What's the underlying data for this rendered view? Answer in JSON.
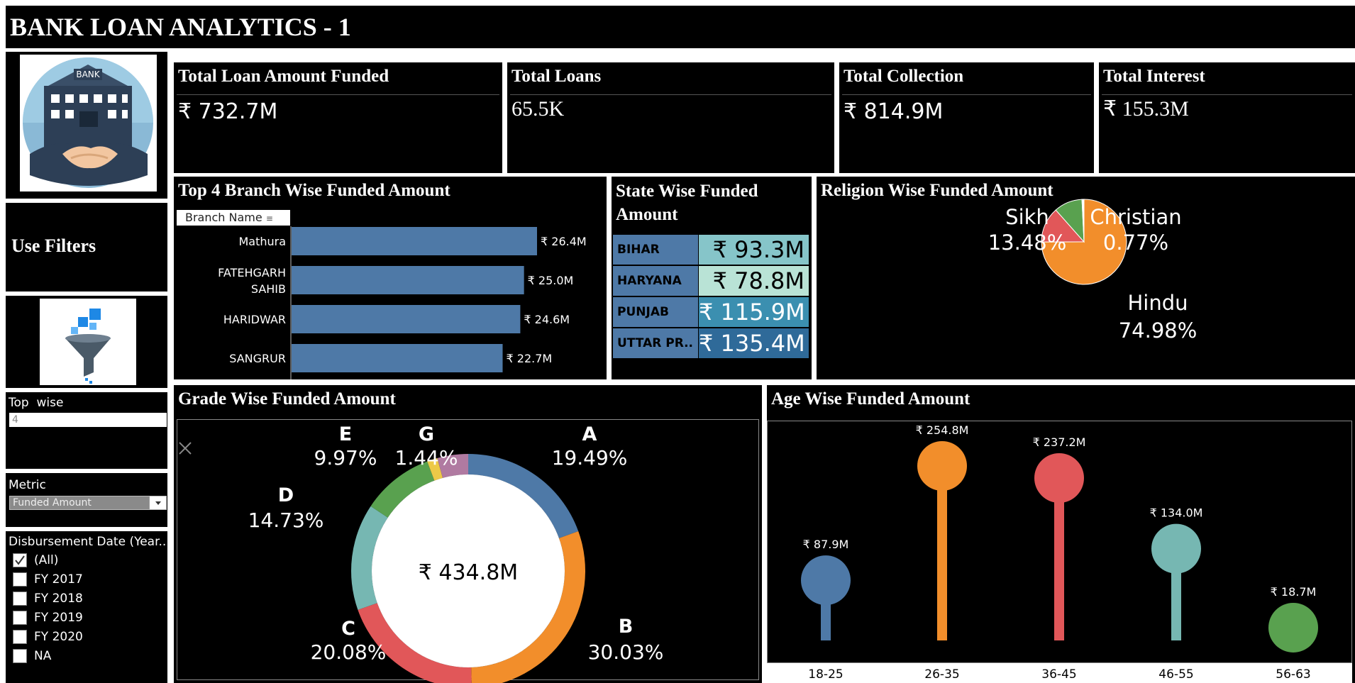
{
  "header": {
    "title": "BANK LOAN ANALYTICS - 1"
  },
  "logo": {
    "sign_text": "BANK"
  },
  "kpis": [
    {
      "label": "Total Loan Amount Funded",
      "value": "₹ 732.7M"
    },
    {
      "label": "Total Loans",
      "value": "65.5K"
    },
    {
      "label": "Total Collection",
      "value": "₹ 814.9M"
    },
    {
      "label": "Total Interest",
      "value": "₹ 155.3M"
    }
  ],
  "sidebar": {
    "use_filters_label": "Use Filters",
    "top_wise": {
      "label": "Top  wise",
      "value": "4"
    },
    "metric": {
      "label": "Metric",
      "selected": "Funded Amount"
    },
    "date_filter": {
      "label": "Disbursement Date (Year..",
      "options": [
        {
          "label": "(All)",
          "checked": true
        },
        {
          "label": "FY 2017",
          "checked": false
        },
        {
          "label": "FY 2018",
          "checked": false
        },
        {
          "label": "FY 2019",
          "checked": false
        },
        {
          "label": "FY 2020",
          "checked": false
        },
        {
          "label": "NA",
          "checked": false
        }
      ]
    }
  },
  "colors": {
    "blue": "#4e79a7",
    "orange": "#f28e2b",
    "red": "#e15759",
    "teal": "#76b7b2",
    "green": "#59a14f",
    "yellow": "#edc948",
    "purple": "#b07aa1"
  },
  "chart_data": [
    {
      "type": "bar",
      "title": "Top 4 Branch Wise Funded Amount",
      "column_header": "Branch Name",
      "categories": [
        "Mathura",
        "FATEHGARH SAHIB",
        "HARIDWAR",
        "SANGRUR"
      ],
      "values": [
        26.4,
        25.0,
        24.6,
        22.7
      ],
      "value_labels": [
        "₹ 26.4M",
        "₹ 25.0M",
        "₹ 24.6M",
        "₹ 22.7M"
      ],
      "orientation": "horizontal",
      "xlim": [
        0,
        30
      ]
    },
    {
      "type": "table",
      "title": "State Wise Funded Amount",
      "rows": [
        {
          "state": "BIHAR",
          "value_label": "₹ 93.3M",
          "value": 93.3,
          "color": "#86c5c9"
        },
        {
          "state": "HARYANA",
          "value_label": "₹ 78.8M",
          "value": 78.8,
          "color": "#b9e3d6"
        },
        {
          "state": "PUNJAB",
          "value_label": "₹ 115.9M",
          "value": 115.9,
          "color": "#3b8fb0"
        },
        {
          "state": "UTTAR PR..",
          "value_label": "₹ 135.4M",
          "value": 135.4,
          "color": "#2f6a99"
        }
      ]
    },
    {
      "type": "pie",
      "title": "Religion Wise Funded Amount",
      "slices": [
        {
          "name": "Hindu",
          "percent": 74.98,
          "label": "74.98%",
          "color": "#f28e2b"
        },
        {
          "name": "Sikh",
          "percent": 13.48,
          "label": "13.48%",
          "color": "#e15759"
        },
        {
          "name": "Christian",
          "percent": 0.77,
          "label": "0.77%",
          "color": "#ffffff"
        }
      ]
    },
    {
      "type": "pie",
      "title": "Grade Wise Funded Amount",
      "center_label": "₹ 434.8M",
      "slices": [
        {
          "name": "A",
          "percent": 19.49,
          "label": "19.49%",
          "color": "#4e79a7"
        },
        {
          "name": "B",
          "percent": 30.03,
          "label": "30.03%",
          "color": "#f28e2b"
        },
        {
          "name": "C",
          "percent": 20.08,
          "label": "20.08%",
          "color": "#e15759"
        },
        {
          "name": "D",
          "percent": 14.73,
          "label": "14.73%",
          "color": "#76b7b2"
        },
        {
          "name": "E",
          "percent": 9.97,
          "label": "9.97%",
          "color": "#59a14f"
        },
        {
          "name": "G",
          "percent": 1.44,
          "label": "1.44%",
          "color": "#edc948"
        },
        {
          "name": "",
          "percent": 4.26,
          "label": "",
          "color": "#b07aa1"
        }
      ]
    },
    {
      "type": "bar",
      "title": "Age Wise Funded Amount",
      "categories": [
        "18-25",
        "26-35",
        "36-45",
        "46-55",
        "56-63"
      ],
      "values": [
        87.9,
        254.8,
        237.2,
        134.0,
        18.7
      ],
      "value_labels": [
        "₹ 87.9M",
        "₹ 254.8M",
        "₹ 237.2M",
        "₹ 134.0M",
        "₹ 18.7M"
      ],
      "colors": [
        "#4e79a7",
        "#f28e2b",
        "#e15759",
        "#76b7b2",
        "#59a14f"
      ],
      "style": "lollipop",
      "ylim": [
        0,
        270
      ]
    }
  ]
}
